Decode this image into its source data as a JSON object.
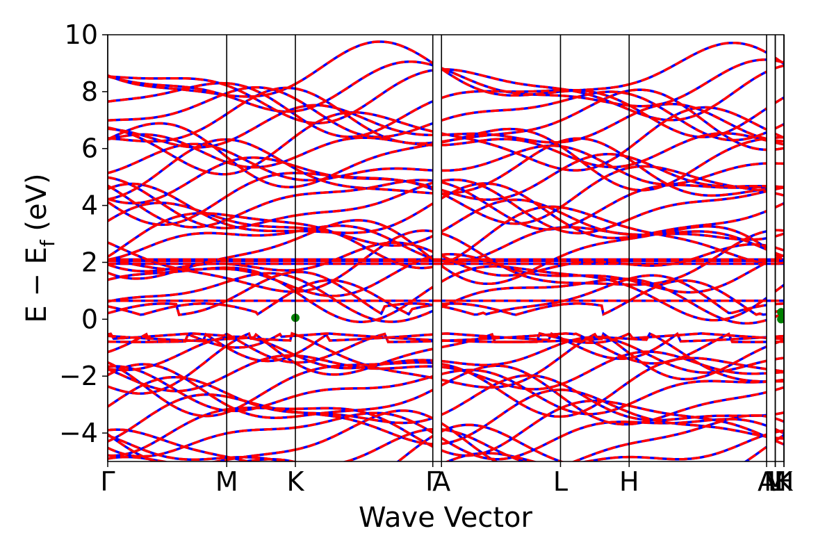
{
  "chart_data": {
    "type": "line",
    "title": "",
    "xlabel": "Wave Vector",
    "ylabel_main": "E − E",
    "ylabel_sub": "f",
    "ylabel_unit": " (eV)",
    "ylim": [
      -5,
      10
    ],
    "yticks": [
      -4,
      -2,
      0,
      2,
      4,
      6,
      8,
      10
    ],
    "ytick_labels": [
      "−4",
      "−2",
      "0",
      "2",
      "4",
      "6",
      "8",
      "10"
    ],
    "kpath": [
      {
        "label": "Γ",
        "pos": 0.0
      },
      {
        "label": "M",
        "pos": 1.0
      },
      {
        "label": "K",
        "pos": 1.577
      },
      {
        "label": "Γ",
        "pos": 2.732
      },
      {
        "label": "A",
        "pos": 2.805
      },
      {
        "label": "L",
        "pos": 3.805
      },
      {
        "label": "H",
        "pos": 4.382
      },
      {
        "label": "A",
        "pos": 5.537
      },
      {
        "label": "L",
        "pos": 5.61
      },
      {
        "label": "M",
        "pos": 5.61
      },
      {
        "label": "H",
        "pos": 5.683
      },
      {
        "label": "K",
        "pos": 5.683
      }
    ],
    "kpath_extent": 5.683,
    "fermi_level_points": [
      {
        "k": 1.577,
        "e": 0.05
      },
      {
        "k": 5.66,
        "e": 0.0
      },
      {
        "k": 5.66,
        "e": 0.25
      }
    ],
    "flat_bands": [
      0.65,
      1.95,
      2.05,
      2.1
    ],
    "series": [
      {
        "color": "#0000ff",
        "style": "solid"
      },
      {
        "color": "#ff0000",
        "style": "dashed"
      }
    ],
    "dot_color": "#008000",
    "grid": false,
    "legend": "none"
  }
}
